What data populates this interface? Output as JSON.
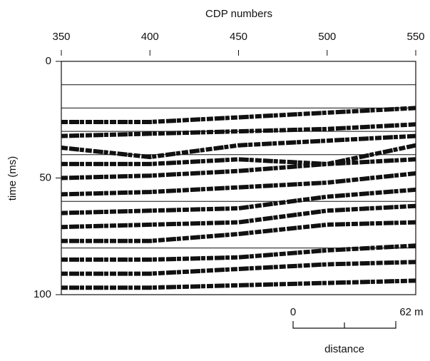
{
  "chart_data": {
    "type": "seismic",
    "title": "CDP numbers",
    "y_label": "time (ms)",
    "xlim": [
      350,
      550
    ],
    "xticks": [
      350,
      400,
      450,
      500,
      550
    ],
    "ylim": [
      0,
      100
    ],
    "yticks": [
      0,
      50,
      100
    ],
    "y_reversed": true,
    "hlines": [
      10,
      20,
      30,
      40,
      60,
      80
    ],
    "color": "#111111",
    "x": [
      350,
      400,
      450,
      500,
      550
    ],
    "series": [
      {
        "values": [
          26,
          26,
          24,
          22,
          20
        ]
      },
      {
        "values": [
          32,
          31,
          30,
          29,
          27
        ]
      },
      {
        "values": [
          37,
          41,
          36,
          34,
          32
        ]
      },
      {
        "values": [
          44,
          44,
          42,
          44,
          36
        ]
      },
      {
        "values": [
          50,
          49,
          47,
          44,
          42
        ]
      },
      {
        "values": [
          57,
          56,
          54,
          52,
          48
        ]
      },
      {
        "values": [
          65,
          64,
          63,
          58,
          55
        ]
      },
      {
        "values": [
          71,
          70,
          69,
          64,
          62
        ]
      },
      {
        "values": [
          77,
          77,
          74,
          70,
          69
        ]
      },
      {
        "values": [
          85,
          85,
          84,
          81,
          79
        ]
      },
      {
        "values": [
          91,
          91,
          89,
          87,
          86
        ]
      },
      {
        "values": [
          97,
          97,
          96,
          95,
          94
        ]
      }
    ],
    "scale_bar": {
      "start_label": "0",
      "end_label": "62 m",
      "label": "distance"
    }
  }
}
